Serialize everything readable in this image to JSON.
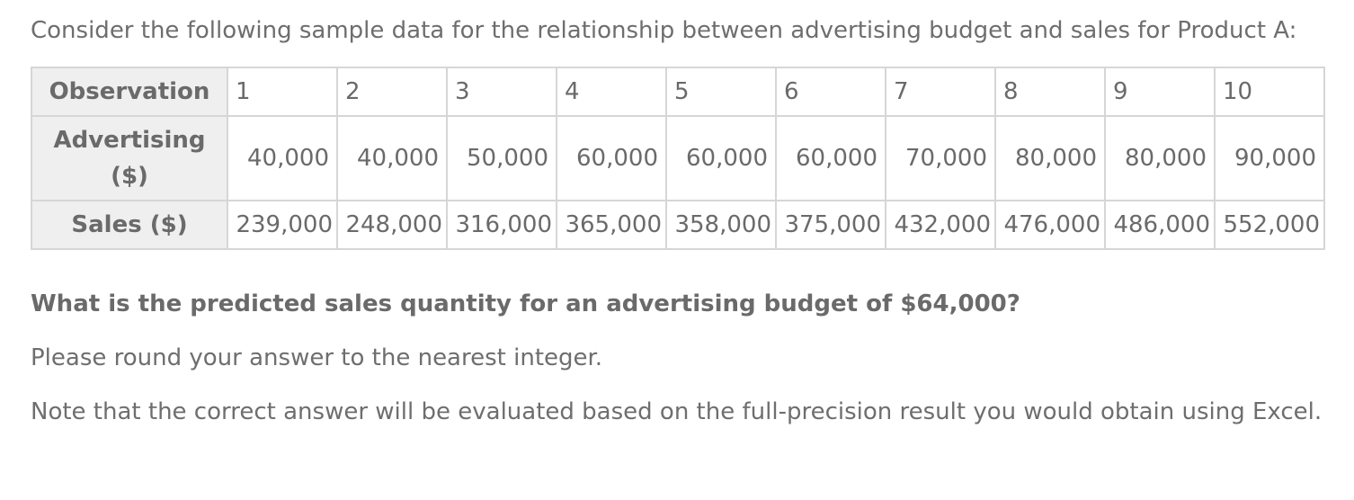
{
  "intro": "Consider the following sample data for the relationship between advertising budget and sales for Product A:",
  "table": {
    "rows": [
      {
        "header": "Observation",
        "cells": [
          "1",
          "2",
          "3",
          "4",
          "5",
          "6",
          "7",
          "8",
          "9",
          "10"
        ]
      },
      {
        "header_line1": "Advertising",
        "header_line2": "($)",
        "cells": [
          "40,000",
          "40,000",
          "50,000",
          "60,000",
          "60,000",
          "60,000",
          "70,000",
          "80,000",
          "80,000",
          "90,000"
        ]
      },
      {
        "header": "Sales ($)",
        "cells": [
          "239,000",
          "248,000",
          "316,000",
          "365,000",
          "358,000",
          "375,000",
          "432,000",
          "476,000",
          "486,000",
          "552,000"
        ]
      }
    ]
  },
  "question": "What is the predicted sales quantity for an advertising budget of $64,000?",
  "instruction": "Please round your answer to the nearest integer.",
  "note": "Note that the correct answer will be evaluated based on the full-precision result you would obtain using Excel."
}
